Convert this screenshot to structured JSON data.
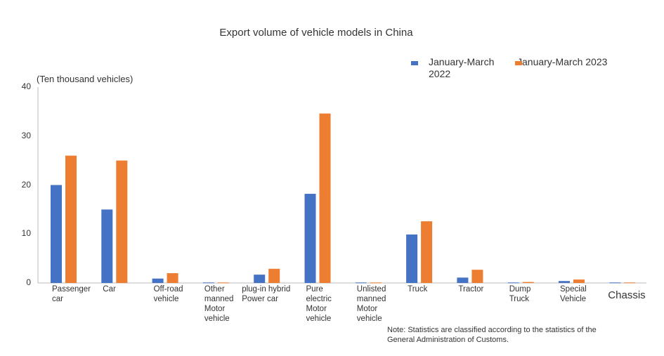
{
  "chart_data": {
    "type": "bar",
    "title": "Export volume of vehicle models in China",
    "ylabel": "(Ten thousand vehicles)",
    "ylim": [
      0,
      40
    ],
    "yticks": [
      0,
      10,
      20,
      30,
      40
    ],
    "grid": false,
    "legend_placement": "top-right",
    "categories": [
      "Passenger\ncar",
      "Car",
      "Off-road\nvehicle",
      "Other\nmanned\nMotor\nvehicle",
      "plug-in hybrid\nPower car",
      "Pure\nelectric\nMotor\nvehicle",
      "Unlisted\nmanned\nMotor\nvehicle",
      "Truck",
      "Tractor",
      "Dump\nTruck",
      "Special\nVehicle",
      "Chassis"
    ],
    "series": [
      {
        "name": "January-March\n2022",
        "color": "#4472c4",
        "values": [
          20,
          15,
          0.9,
          0.1,
          1.7,
          18.2,
          0.1,
          9.9,
          1.1,
          0.1,
          0.4,
          0.1
        ]
      },
      {
        "name": "January-March 2023",
        "color": "#ed7d31",
        "values": [
          26,
          25,
          2.0,
          0.1,
          2.9,
          34.6,
          0.1,
          12.6,
          2.7,
          0.2,
          0.7,
          0.1
        ]
      }
    ],
    "note": "Note: Statistics are classified according to the statistics of the\nGeneral Administration of Customs."
  }
}
